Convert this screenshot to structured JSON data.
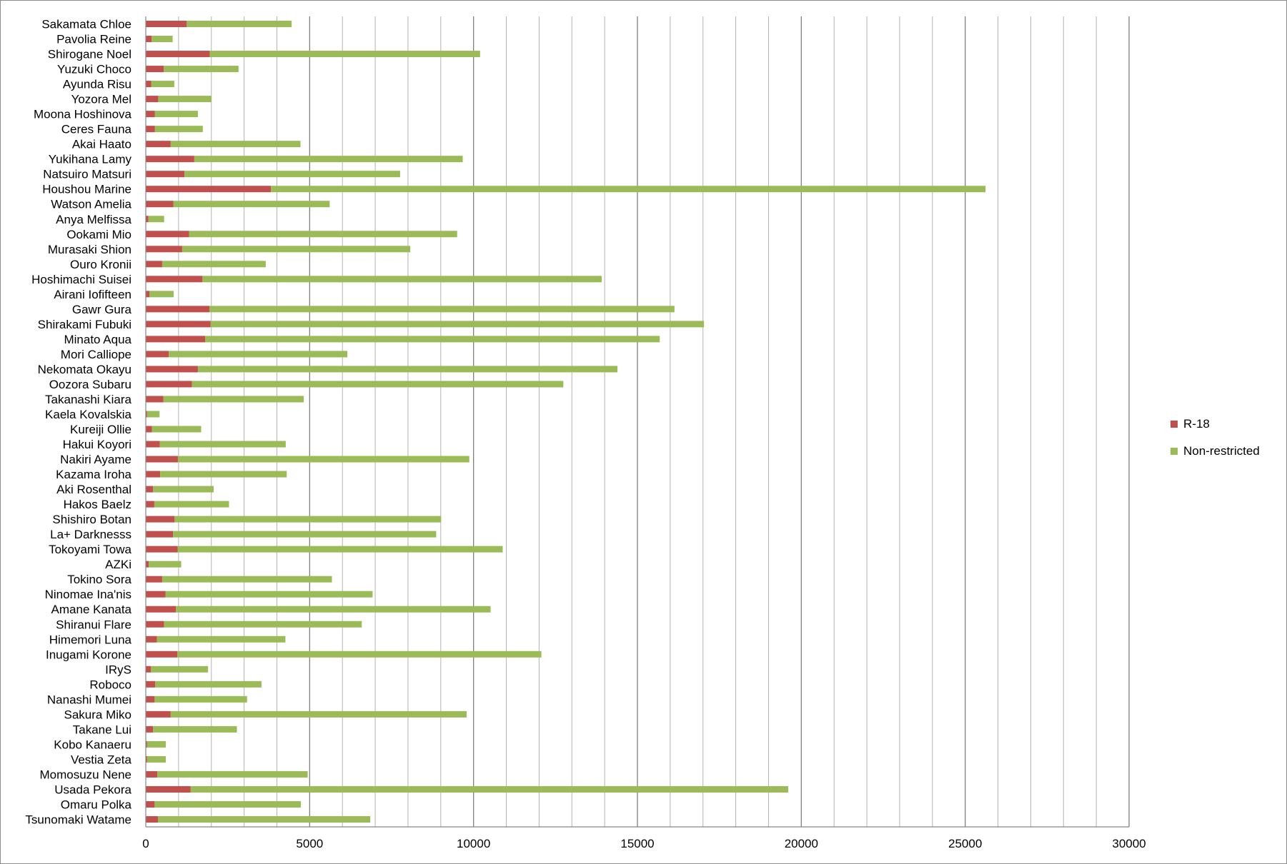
{
  "chart_data": {
    "type": "bar",
    "orientation": "horizontal",
    "stacked": true,
    "title": "",
    "xlabel": "",
    "ylabel": "",
    "xlim": [
      0,
      30000
    ],
    "x_ticks": [
      0,
      5000,
      10000,
      15000,
      20000,
      25000,
      30000
    ],
    "minor_gridline_step": 1000,
    "grid": true,
    "legend_position": "right",
    "categories": [
      "Sakamata Chloe",
      "Pavolia Reine",
      "Shirogane Noel",
      "Yuzuki Choco",
      "Ayunda Risu",
      "Yozora Mel",
      "Moona Hoshinova",
      "Ceres Fauna",
      "Akai Haato",
      "Yukihana Lamy",
      "Natsuiro Matsuri",
      "Houshou Marine",
      "Watson Amelia",
      "Anya Melfissa",
      "Ookami Mio",
      "Murasaki Shion",
      "Ouro Kronii",
      "Hoshimachi Suisei",
      "Airani Iofifteen",
      "Gawr Gura",
      "Shirakami Fubuki",
      "Minato Aqua",
      "Mori Calliope",
      "Nekomata Okayu",
      "Oozora Subaru",
      "Takanashi Kiara",
      "Kaela Kovalskia",
      "Kureiji Ollie",
      "Hakui Koyori",
      "Nakiri Ayame",
      "Kazama Iroha",
      "Aki Rosenthal",
      "Hakos Baelz",
      "Shishiro Botan",
      "La+ Darknesss",
      "Tokoyami Towa",
      "AZKi",
      "Tokino Sora",
      "Ninomae Ina'nis",
      "Amane Kanata",
      "Shiranui Flare",
      "Himemori Luna",
      "Inugami Korone",
      "IRyS",
      "Roboco",
      "Nanashi Mumei",
      "Sakura Miko",
      "Takane Lui",
      "Kobo Kanaeru",
      "Vestia Zeta",
      "Momosuzu Nene",
      "Usada Pekora",
      "Omaru Polka",
      "Tsunomaki Watame"
    ],
    "series": [
      {
        "name": "R-18",
        "color": "#c0504d",
        "values": [
          1250,
          180,
          1950,
          550,
          170,
          380,
          280,
          280,
          760,
          1480,
          1180,
          3820,
          840,
          80,
          1320,
          1110,
          500,
          1730,
          110,
          1940,
          1980,
          1810,
          700,
          1590,
          1410,
          540,
          40,
          190,
          430,
          980,
          440,
          220,
          260,
          880,
          830,
          970,
          90,
          500,
          600,
          920,
          560,
          340,
          960,
          160,
          290,
          270,
          760,
          220,
          40,
          40,
          350,
          1370,
          270,
          370
        ]
      },
      {
        "name": "Non-restricted",
        "color": "#9bbb59",
        "values": [
          3200,
          640,
          8250,
          2280,
          700,
          1620,
          1310,
          1460,
          3960,
          8190,
          6580,
          21800,
          4770,
          480,
          8180,
          6960,
          3160,
          12180,
          740,
          14190,
          15050,
          13870,
          5450,
          12800,
          11330,
          4280,
          380,
          1500,
          3840,
          8890,
          3860,
          1850,
          2280,
          8130,
          8030,
          9920,
          990,
          5180,
          6320,
          9600,
          6030,
          3920,
          11110,
          1740,
          3240,
          2820,
          9030,
          2560,
          570,
          570,
          4590,
          18230,
          4460,
          6480
        ]
      }
    ]
  }
}
